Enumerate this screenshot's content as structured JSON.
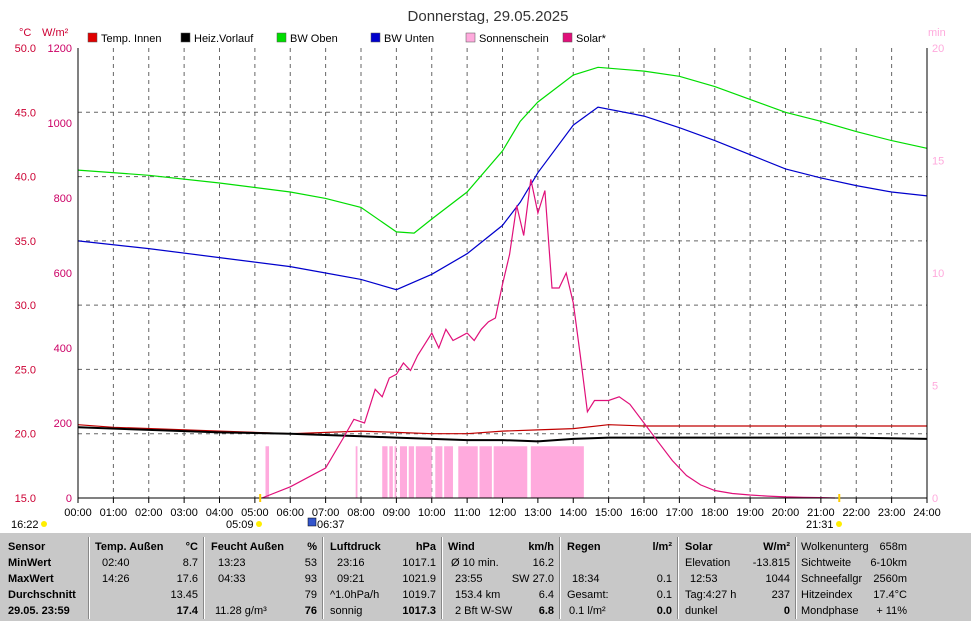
{
  "chart_data": {
    "type": "line",
    "title": "Donnerstag, 29.05.2025",
    "left_axis_unit_temp": "°C",
    "left_axis_unit_rad": "W/m²",
    "right_axis_unit": "min",
    "temp_ticks": [
      "50.0",
      "45.0",
      "40.0",
      "35.0",
      "30.0",
      "25.0",
      "20.0",
      "15.0"
    ],
    "rad_ticks": [
      "1200",
      "1000",
      "800",
      "600",
      "400",
      "200",
      "0"
    ],
    "min_ticks": [
      "20",
      "15",
      "10",
      "5",
      "0"
    ],
    "x_ticks": [
      "00:00",
      "01:00",
      "02:00",
      "03:00",
      "04:00",
      "05:00",
      "06:00",
      "07:00",
      "08:00",
      "09:00",
      "10:00",
      "11:00",
      "12:00",
      "13:00",
      "14:00",
      "15:00",
      "16:00",
      "17:00",
      "18:00",
      "19:00",
      "20:00",
      "21:00",
      "22:00",
      "23:00",
      "24:00"
    ],
    "temp_ylim": [
      15,
      50
    ],
    "rad_ylim": [
      0,
      1200
    ],
    "min_ylim": [
      0,
      20
    ],
    "xlim_hours": [
      0,
      24
    ],
    "grid": true,
    "legend_position": "top",
    "legend": [
      {
        "name": "Temp. Innen",
        "color": "#e00000"
      },
      {
        "name": "Heiz.Vorlauf",
        "color": "#000000"
      },
      {
        "name": "BW Oben",
        "color": "#00dd00"
      },
      {
        "name": "BW Unten",
        "color": "#0000cc"
      },
      {
        "name": "Sonnenschein",
        "color": "#ffaadd"
      },
      {
        "name": "Solar*",
        "color": "#e0107a"
      }
    ],
    "series": [
      {
        "name": "Temp. Innen",
        "axis": "temp",
        "color": "#c00000",
        "x": [
          0,
          1,
          4,
          6,
          8,
          9,
          10,
          11,
          12,
          13,
          14,
          15,
          16,
          18,
          20,
          22,
          24
        ],
        "values": [
          20.7,
          20.5,
          20.2,
          20.0,
          20.2,
          20.1,
          20.0,
          20.0,
          20.2,
          20.3,
          20.4,
          20.7,
          20.6,
          20.6,
          20.6,
          20.6,
          20.6
        ]
      },
      {
        "name": "Heiz.Vorlauf",
        "axis": "temp",
        "color": "#000000",
        "x": [
          0,
          2,
          4,
          6,
          8,
          9,
          10,
          11,
          12,
          13,
          14,
          15,
          16,
          18,
          20,
          22,
          24
        ],
        "values": [
          20.5,
          20.3,
          20.1,
          20.0,
          19.8,
          19.7,
          19.6,
          19.5,
          19.5,
          19.4,
          19.6,
          19.7,
          19.7,
          19.7,
          19.7,
          19.7,
          19.6
        ]
      },
      {
        "name": "BW Oben",
        "axis": "temp",
        "color": "#00dd00",
        "x": [
          0,
          2,
          4,
          6,
          7,
          8,
          9,
          9.5,
          10,
          11,
          12,
          12.5,
          13,
          14,
          14.7,
          16,
          17,
          18,
          19,
          20,
          21,
          22,
          23,
          24
        ],
        "values": [
          40.5,
          40.1,
          39.5,
          38.8,
          38.3,
          37.6,
          35.7,
          35.6,
          36.7,
          38.8,
          42.0,
          44.3,
          45.8,
          47.9,
          48.5,
          48.2,
          47.8,
          47.0,
          46.0,
          45.0,
          44.3,
          43.5,
          42.8,
          42.2
        ]
      },
      {
        "name": "BW Unten",
        "axis": "temp",
        "color": "#0000cc",
        "x": [
          0,
          2,
          4,
          6,
          7,
          8,
          9,
          10,
          11,
          12,
          12.5,
          13,
          14,
          14.7,
          16,
          17,
          18,
          19,
          20,
          21,
          22,
          23,
          24
        ],
        "values": [
          35.0,
          34.4,
          33.7,
          33.0,
          32.5,
          32.0,
          31.2,
          32.4,
          34.0,
          36.2,
          38.0,
          40.3,
          44.0,
          45.4,
          44.7,
          43.8,
          42.8,
          41.7,
          40.6,
          39.9,
          39.3,
          38.8,
          38.5
        ]
      },
      {
        "name": "Solar*",
        "axis": "rad",
        "color": "#e0107a",
        "x": [
          5.2,
          6,
          7,
          7.5,
          7.8,
          8.1,
          8.4,
          8.6,
          8.8,
          9,
          9.2,
          9.4,
          9.6,
          9.8,
          10,
          10.2,
          10.4,
          10.6,
          10.8,
          11,
          11.2,
          11.4,
          11.6,
          11.8,
          12,
          12.2,
          12.4,
          12.6,
          12.8,
          13,
          13.2,
          13.4,
          13.6,
          13.8,
          14,
          14.2,
          14.4,
          14.6,
          15,
          15.3,
          15.6,
          16,
          16.4,
          16.8,
          17.2,
          17.6,
          18,
          18.5,
          19,
          19.5,
          20,
          20.5,
          21,
          21.4
        ],
        "values": [
          0,
          30,
          80,
          160,
          210,
          200,
          290,
          270,
          320,
          330,
          360,
          340,
          380,
          410,
          440,
          400,
          450,
          420,
          430,
          440,
          420,
          450,
          470,
          480,
          570,
          650,
          780,
          700,
          850,
          760,
          820,
          560,
          560,
          600,
          520,
          380,
          230,
          260,
          260,
          270,
          250,
          200,
          150,
          100,
          60,
          35,
          20,
          12,
          8,
          5,
          3,
          2,
          1,
          0
        ]
      }
    ],
    "sunshine_intervals": [
      [
        5.3,
        5.4
      ],
      [
        7.85,
        7.9
      ],
      [
        8.6,
        8.75
      ],
      [
        8.8,
        8.9
      ],
      [
        8.95,
        9.0
      ],
      [
        9.1,
        9.3
      ],
      [
        9.35,
        9.5
      ],
      [
        9.55,
        10.0
      ],
      [
        10.1,
        10.3
      ],
      [
        10.35,
        10.6
      ],
      [
        10.75,
        11.3
      ],
      [
        11.35,
        11.7
      ],
      [
        11.75,
        12.7
      ],
      [
        12.8,
        14.3
      ]
    ],
    "sunshine_level_min": 2.3,
    "markers": {
      "sunrise_label": "05:09",
      "sunset_label": "21:31",
      "start_label": "16:22",
      "noon_label": "06:37",
      "sunrise_hour": 5.15,
      "sunset_hour": 21.52
    }
  },
  "panel": {
    "sensor": {
      "header": "Sensor",
      "rows": [
        "MinWert",
        "MaxWert",
        "Durchschnitt"
      ],
      "footer": "29.05. 23:59"
    },
    "temp": {
      "header": "Temp. Außen",
      "unit": "°C",
      "min_time": "02:40",
      "min_val": "8.7",
      "max_time": "14:26",
      "max_val": "17.6",
      "avg": "13.45",
      "current": "17.4"
    },
    "feucht": {
      "header": "Feucht Außen",
      "unit": "%",
      "min_time": "13:23",
      "min_val": "53",
      "max_time": "04:33",
      "max_val": "93",
      "avg": "79",
      "abs": "11.28 g/m³",
      "current": "76"
    },
    "luft": {
      "header": "Luftdruck",
      "unit": "hPa",
      "min_time": "23:16",
      "min_val": "1017.1",
      "max_time": "09:21",
      "max_val": "1021.9",
      "trend_label": "^1.0hPa/h",
      "trend_val": "1019.7",
      "state": "sonnig",
      "current": "1017.3"
    },
    "wind": {
      "header": "Wind",
      "unit": "km/h",
      "avg_label": "Ø 10 min.",
      "avg_val": "16.2",
      "max_time": "23:55",
      "max_val": "SW 27.0",
      "dist": "153.4 km",
      "dist_val": "6.4",
      "bft": "2 Bft W-SW",
      "current": "6.8"
    },
    "regen": {
      "header": "Regen",
      "unit": "l/m²",
      "time": "18:34",
      "time_val": "0.1",
      "gesamt_label": "Gesamt:",
      "gesamt_val": "0.1",
      "rate": "0.1 l/m²",
      "current": "0.0"
    },
    "solar": {
      "header": "Solar",
      "unit": "W/m²",
      "elev_label": "Elevation",
      "elev_val": "-13.815",
      "max_time": "12:53",
      "max_val": "1044",
      "tag_label": "Tag:4:27 h",
      "tag_val": "237",
      "state": "dunkel",
      "current": "0"
    },
    "misc": {
      "rows": [
        {
          "label": "Wolkenunterg",
          "value": "658m"
        },
        {
          "label": "Sichtweite",
          "value": "6-10km"
        },
        {
          "label": "Schneefallgr",
          "value": "2560m"
        },
        {
          "label": "Hitzeindex",
          "value": "17.4°C"
        },
        {
          "label": "Mondphase",
          "value": "+ 11%"
        }
      ]
    }
  }
}
